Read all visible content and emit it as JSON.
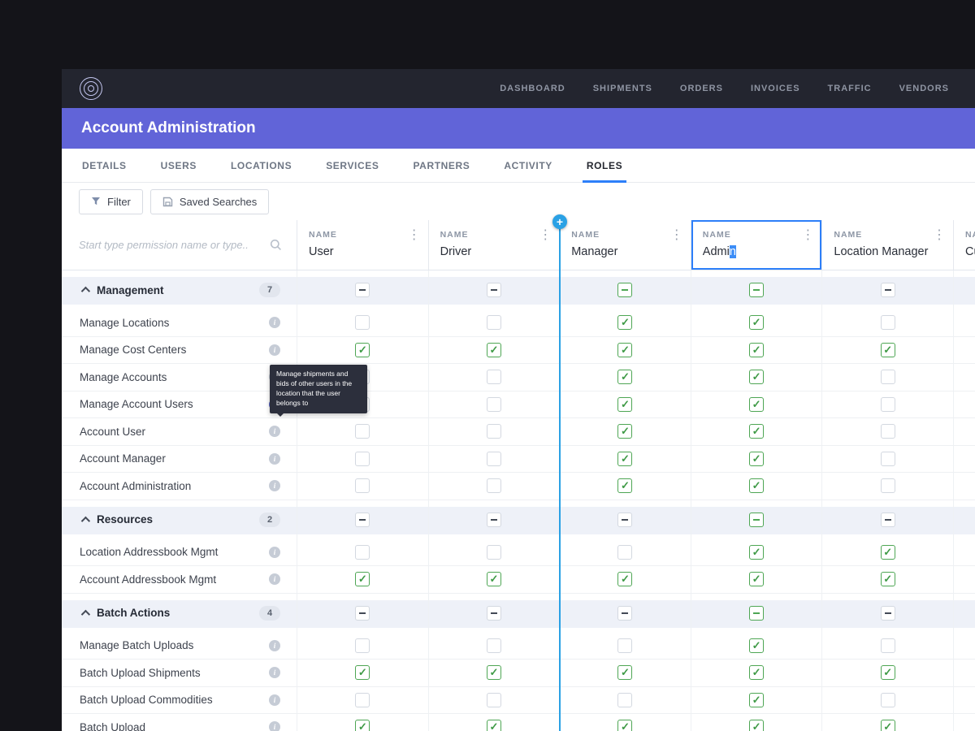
{
  "nav": {
    "items": [
      "DASHBOARD",
      "SHIPMENTS",
      "ORDERS",
      "INVOICES",
      "TRAFFIC",
      "VENDORS"
    ]
  },
  "header": {
    "title": "Account Administration"
  },
  "tabs": {
    "items": [
      "DETAILS",
      "USERS",
      "LOCATIONS",
      "SERVICES",
      "PARTNERS",
      "ACTIVITY",
      "ROLES"
    ],
    "active": "ROLES"
  },
  "toolbar": {
    "filter_label": "Filter",
    "saved_searches_label": "Saved Searches"
  },
  "search": {
    "placeholder": "Start type permission name or type.."
  },
  "colors": {
    "accent_blue": "#2d7ff9",
    "insert_blue": "#2aa1e5",
    "green": "#4ea654",
    "purple_header": "#6164d8",
    "dark_nav": "#23252f"
  },
  "table": {
    "name_header": "NAME",
    "columns": [
      {
        "name": "User"
      },
      {
        "name": "Driver"
      },
      {
        "name": "Manager"
      },
      {
        "name": "Admin",
        "selected": true,
        "selection_tail": 1
      },
      {
        "name": "Location Manager"
      },
      {
        "name": "Cu"
      }
    ],
    "tooltip": {
      "text": "Manage shipments and bids of other users in the location that the user belongs to",
      "attached_row": "Manage Account Users"
    },
    "rows": [
      {
        "type": "group",
        "label": "Management",
        "count": "7",
        "states": [
          "ind",
          "ind",
          "indg",
          "indg",
          "ind",
          "ind"
        ]
      },
      {
        "type": "perm",
        "label": "Manage Locations",
        "states": [
          "un",
          "un",
          "chk",
          "chk",
          "un",
          "un"
        ]
      },
      {
        "type": "perm",
        "label": "Manage Cost Centers",
        "states": [
          "chk",
          "chk",
          "chk",
          "chk",
          "chk",
          "chk"
        ]
      },
      {
        "type": "perm",
        "label": "Manage Accounts",
        "states": [
          "un",
          "un",
          "chk",
          "chk",
          "un",
          "un"
        ]
      },
      {
        "type": "perm",
        "label": "Manage Account Users",
        "info_active": true,
        "states": [
          "un",
          "un",
          "chk",
          "chk",
          "un",
          "un"
        ]
      },
      {
        "type": "perm",
        "label": "Account User",
        "states": [
          "un",
          "un",
          "chk",
          "chk",
          "un",
          "un"
        ]
      },
      {
        "type": "perm",
        "label": "Account Manager",
        "states": [
          "un",
          "un",
          "chk",
          "chk",
          "un",
          "un"
        ]
      },
      {
        "type": "perm",
        "label": "Account Administration",
        "states": [
          "un",
          "un",
          "chk",
          "chk",
          "un",
          "un"
        ]
      },
      {
        "type": "group",
        "label": "Resources",
        "count": "2",
        "states": [
          "ind",
          "ind",
          "ind",
          "indg",
          "ind",
          "ind"
        ]
      },
      {
        "type": "perm",
        "label": "Location Addressbook Mgmt",
        "states": [
          "un",
          "un",
          "un",
          "chk",
          "chk",
          "chk"
        ]
      },
      {
        "type": "perm",
        "label": "Account Addressbook Mgmt",
        "states": [
          "chk",
          "chk",
          "chk",
          "chk",
          "chk",
          "chk"
        ]
      },
      {
        "type": "group",
        "label": "Batch Actions",
        "count": "4",
        "states": [
          "ind",
          "ind",
          "ind",
          "indg",
          "ind",
          "ind"
        ]
      },
      {
        "type": "perm",
        "label": "Manage Batch Uploads",
        "states": [
          "un",
          "un",
          "un",
          "chk",
          "un",
          "un"
        ]
      },
      {
        "type": "perm",
        "label": "Batch Upload Shipments",
        "states": [
          "chk",
          "chk",
          "chk",
          "chk",
          "chk",
          "chk"
        ]
      },
      {
        "type": "perm",
        "label": "Batch Upload Commodities",
        "states": [
          "un",
          "un",
          "un",
          "chk",
          "un",
          "un"
        ]
      },
      {
        "type": "perm",
        "label": "Batch Upload",
        "states": [
          "chk",
          "chk",
          "chk",
          "chk",
          "chk",
          "chk"
        ]
      }
    ]
  }
}
